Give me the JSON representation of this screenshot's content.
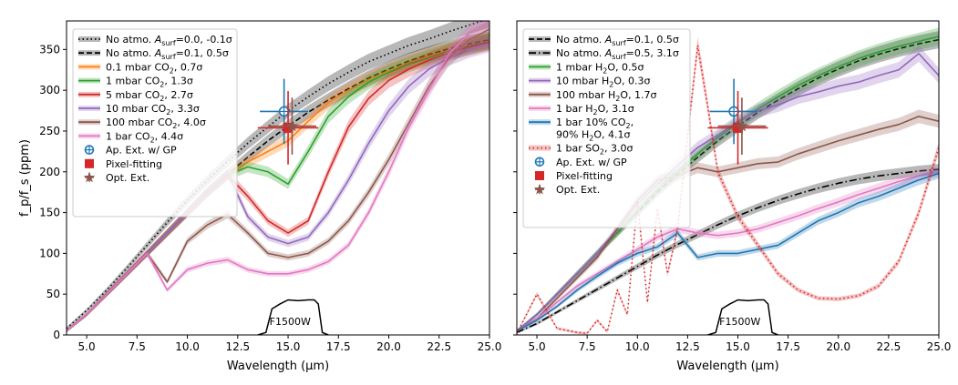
{
  "chart_data": [
    {
      "type": "line",
      "panel": "left",
      "xlabel": "Wavelength (μm)",
      "ylabel": "f_p/f_s (ppm)",
      "xlim": [
        4,
        25
      ],
      "ylim": [
        0,
        385
      ],
      "xticks": [
        5.0,
        7.5,
        10.0,
        12.5,
        15.0,
        17.5,
        20.0,
        22.5,
        25.0
      ],
      "xtick_labels": [
        "5.0",
        "7.5",
        "10.0",
        "12.5",
        "15.0",
        "17.5",
        "20.0",
        "22.5",
        "25.0"
      ],
      "yticks": [
        0,
        50,
        100,
        150,
        200,
        250,
        300,
        350
      ],
      "ytick_labels": [
        "0",
        "50",
        "100",
        "150",
        "200",
        "250",
        "300",
        "350"
      ],
      "legend_position": "top-left",
      "filter_label": "F1500W",
      "series": [
        {
          "name": "No atmo. A_surf=0.0, -0.1σ",
          "label_pre": "No atmo. ",
          "label_sym": "A",
          "label_sub": "surf",
          "label_post": "=0.0, -0.1σ",
          "color": "#000000",
          "dash": "dotted",
          "band": true,
          "x": [
            4,
            5,
            6,
            7,
            8,
            9,
            10,
            11,
            12,
            13,
            14,
            15,
            16,
            17,
            18,
            19,
            20,
            21,
            22,
            23,
            24,
            25
          ],
          "y": [
            8,
            30,
            55,
            82,
            110,
            138,
            165,
            190,
            213,
            235,
            255,
            275,
            292,
            308,
            322,
            335,
            345,
            355,
            363,
            372,
            380,
            388
          ]
        },
        {
          "name": "No atmo. A_surf=0.1, 0.5σ",
          "label_pre": "No atmo. ",
          "label_sym": "A",
          "label_sub": "surf",
          "label_post": "=0.1, 0.5σ",
          "color": "#000000",
          "dash": "dashed",
          "band": true,
          "x": [
            4,
            5,
            6,
            7,
            8,
            9,
            10,
            11,
            12,
            13,
            14,
            15,
            16,
            17,
            18,
            19,
            20,
            21,
            22,
            23,
            24,
            25
          ],
          "y": [
            5,
            25,
            50,
            75,
            100,
            125,
            150,
            175,
            197,
            218,
            238,
            256,
            273,
            288,
            302,
            315,
            326,
            336,
            344,
            351,
            357,
            362
          ]
        },
        {
          "name": "0.1 mbar CO2, 0.7σ",
          "label_pre": "0.1 mbar CO",
          "label_sub": "2",
          "label_post": ", 0.7σ",
          "color": "#ff7f0e",
          "band": true,
          "x": [
            4,
            5,
            6,
            7,
            8,
            9,
            10,
            11,
            12,
            13,
            14,
            15,
            16,
            17,
            18,
            19,
            20,
            21,
            22,
            23,
            24,
            25
          ],
          "y": [
            5,
            25,
            50,
            75,
            100,
            125,
            150,
            175,
            196,
            212,
            225,
            238,
            262,
            285,
            300,
            313,
            324,
            334,
            342,
            349,
            355,
            360
          ]
        },
        {
          "name": "1 mbar CO2, 1.3σ",
          "label_pre": "1 mbar CO",
          "label_sub": "2",
          "label_post": ", 1.3σ",
          "color": "#2ca02c",
          "band": true,
          "x": [
            4,
            5,
            6,
            7,
            8,
            9,
            10,
            11,
            12,
            13,
            14,
            15,
            16,
            17,
            18,
            19,
            20,
            21,
            22,
            23,
            24,
            25
          ],
          "y": [
            5,
            25,
            50,
            75,
            100,
            125,
            150,
            175,
            196,
            206,
            200,
            185,
            225,
            268,
            292,
            310,
            322,
            332,
            340,
            348,
            354,
            360
          ]
        },
        {
          "name": "5 mbar CO2, 2.7σ",
          "label_pre": "5 mbar CO",
          "label_sub": "2",
          "label_post": ", 2.7σ",
          "color": "#d62728",
          "band": true,
          "x": [
            4,
            5,
            6,
            7,
            8,
            9,
            10,
            11,
            12,
            13,
            14,
            15,
            16,
            17,
            18,
            19,
            20,
            21,
            22,
            23,
            24,
            25
          ],
          "y": [
            5,
            25,
            50,
            75,
            100,
            125,
            150,
            175,
            196,
            170,
            140,
            125,
            140,
            200,
            255,
            290,
            312,
            326,
            337,
            346,
            353,
            359
          ]
        },
        {
          "name": "10 mbar CO2, 3.3σ",
          "label_pre": "10 mbar CO",
          "label_sub": "2",
          "label_post": ", 3.3σ",
          "color": "#9467bd",
          "band": true,
          "x": [
            4,
            5,
            6,
            7,
            8,
            9,
            10,
            11,
            12,
            13,
            14,
            15,
            16,
            17,
            18,
            19,
            20,
            21,
            22,
            23,
            24,
            25
          ],
          "y": [
            5,
            25,
            50,
            75,
            100,
            125,
            150,
            175,
            198,
            145,
            120,
            112,
            120,
            150,
            190,
            235,
            275,
            305,
            326,
            340,
            350,
            357
          ]
        },
        {
          "name": "100 mbar CO2, 4.0σ",
          "label_pre": "100 mbar CO",
          "label_sub": "2",
          "label_post": ", 4.0σ",
          "color": "#8c564b",
          "band": true,
          "x": [
            4,
            5,
            6,
            7,
            8,
            9,
            10,
            11,
            12,
            13,
            14,
            15,
            16,
            17,
            18,
            19,
            20,
            21,
            22,
            23,
            24,
            25
          ],
          "y": [
            5,
            25,
            50,
            75,
            100,
            65,
            115,
            135,
            148,
            125,
            100,
            95,
            100,
            115,
            140,
            175,
            215,
            260,
            305,
            340,
            362,
            375
          ]
        },
        {
          "name": "1 bar CO2, 4.4σ",
          "label_pre": "1 bar CO",
          "label_sub": "2",
          "label_post": ", 4.4σ",
          "color": "#e377c2",
          "band": true,
          "x": [
            4,
            5,
            6,
            7,
            8,
            9,
            10,
            11,
            12,
            13,
            14,
            15,
            16,
            17,
            18,
            19,
            20,
            21,
            22,
            23,
            24,
            25
          ],
          "y": [
            5,
            25,
            50,
            75,
            100,
            55,
            80,
            88,
            92,
            80,
            75,
            75,
            80,
            90,
            110,
            150,
            200,
            255,
            300,
            345,
            370,
            385
          ]
        }
      ],
      "points": [
        {
          "name": "Ap. Ext. w/ GP",
          "x": 14.8,
          "y": 274,
          "xerr": 1.2,
          "yerr": 40,
          "color": "#1f77b4",
          "marker": "circle-plus"
        },
        {
          "name": "Pixel-fitting",
          "x": 15.0,
          "y": 254,
          "xerr": 1.5,
          "yerr": 45,
          "color": "#d62728",
          "marker": "square"
        },
        {
          "name": "Opt. Ext.",
          "x": 15.2,
          "y": 256,
          "xerr": 1.2,
          "yerr": 35,
          "color": "#8c564b",
          "marker": "star"
        }
      ]
    },
    {
      "type": "line",
      "panel": "right",
      "xlabel": "Wavelength (μm)",
      "ylabel": "",
      "xlim": [
        4,
        25
      ],
      "ylim": [
        0,
        385
      ],
      "xticks": [
        5.0,
        7.5,
        10.0,
        12.5,
        15.0,
        17.5,
        20.0,
        22.5,
        25.0
      ],
      "xtick_labels": [
        "5.0",
        "7.5",
        "10.0",
        "12.5",
        "15.0",
        "17.5",
        "20.0",
        "22.5",
        "25.0"
      ],
      "yticks": [
        0,
        50,
        100,
        150,
        200,
        250,
        300,
        350
      ],
      "legend_position": "top-left",
      "filter_label": "F1500W",
      "series": [
        {
          "name": "No atmo. A_surf=0.1, 0.5σ",
          "label_pre": "No atmo. ",
          "label_sym": "A",
          "label_sub": "surf",
          "label_post": "=0.1, 0.5σ",
          "color": "#000000",
          "dash": "dashed",
          "band": true,
          "x": [
            4,
            5,
            6,
            7,
            8,
            9,
            10,
            11,
            12,
            13,
            14,
            15,
            16,
            17,
            18,
            19,
            20,
            21,
            22,
            23,
            24,
            25
          ],
          "y": [
            5,
            25,
            50,
            75,
            100,
            125,
            150,
            175,
            197,
            218,
            238,
            256,
            273,
            288,
            302,
            315,
            326,
            336,
            344,
            351,
            357,
            362
          ]
        },
        {
          "name": "No atmo. A_surf=0.5, 3.1σ",
          "label_pre": "No atmo. ",
          "label_sym": "A",
          "label_sub": "surf",
          "label_post": "=0.5, 3.1σ",
          "color": "#000000",
          "dash": "dashdot",
          "band": true,
          "x": [
            4,
            5,
            6,
            7,
            8,
            9,
            10,
            11,
            12,
            13,
            14,
            15,
            16,
            17,
            18,
            19,
            20,
            21,
            22,
            23,
            24,
            25
          ],
          "y": [
            3,
            14,
            28,
            42,
            56,
            70,
            84,
            98,
            111,
            123,
            135,
            146,
            156,
            165,
            173,
            180,
            186,
            191,
            195,
            198,
            201,
            203
          ]
        },
        {
          "name": "1 mbar H2O, 0.5σ",
          "label_pre": "1 mbar H",
          "label_sub": "2",
          "label_post": "O, 0.5σ",
          "color": "#2ca02c",
          "band": true,
          "x": [
            4,
            5,
            6,
            7,
            8,
            9,
            10,
            11,
            12,
            13,
            14,
            15,
            16,
            17,
            18,
            19,
            20,
            21,
            22,
            23,
            24,
            25
          ],
          "y": [
            5,
            25,
            50,
            75,
            100,
            125,
            152,
            178,
            200,
            222,
            242,
            260,
            277,
            292,
            306,
            318,
            329,
            339,
            347,
            354,
            360,
            366
          ]
        },
        {
          "name": "10 mbar H2O, 0.3σ",
          "label_pre": "10 mbar H",
          "label_sub": "2",
          "label_post": "O, 0.3σ",
          "color": "#9467bd",
          "band": true,
          "x": [
            4,
            5,
            6,
            7,
            8,
            9,
            10,
            11,
            12,
            13,
            14,
            15,
            16,
            17,
            18,
            19,
            20,
            21,
            22,
            23,
            24,
            25
          ],
          "y": [
            5,
            25,
            50,
            75,
            100,
            130,
            160,
            185,
            208,
            230,
            245,
            262,
            275,
            282,
            292,
            298,
            305,
            310,
            318,
            325,
            345,
            318
          ]
        },
        {
          "name": "100 mbar H2O, 1.7σ",
          "label_pre": "100 mbar H",
          "label_sub": "2",
          "label_post": "O, 1.7σ",
          "color": "#8c564b",
          "band": true,
          "x": [
            4,
            5,
            6,
            7,
            8,
            9,
            10,
            11,
            12,
            13,
            14,
            15,
            16,
            17,
            18,
            19,
            20,
            21,
            22,
            23,
            24,
            25
          ],
          "y": [
            5,
            20,
            45,
            70,
            95,
            130,
            165,
            190,
            195,
            205,
            200,
            205,
            210,
            212,
            222,
            230,
            238,
            245,
            252,
            258,
            268,
            262
          ]
        },
        {
          "name": "1 bar H2O, 3.1σ",
          "label_pre": "1 bar H",
          "label_sub": "2",
          "label_post": "O, 3.1σ",
          "color": "#e377c2",
          "band": true,
          "x": [
            4,
            5,
            6,
            7,
            8,
            9,
            10,
            11,
            12,
            13,
            14,
            15,
            16,
            17,
            18,
            19,
            20,
            21,
            22,
            23,
            24,
            25
          ],
          "y": [
            5,
            20,
            40,
            60,
            75,
            90,
            105,
            120,
            130,
            125,
            122,
            125,
            130,
            138,
            146,
            155,
            163,
            172,
            180,
            188,
            195,
            200
          ]
        },
        {
          "name": "1 bar 10% CO2, 90% H2O, 4.1σ",
          "label_line1_pre": "1 bar 10% CO",
          "label_line1_sub": "2",
          "label_line1_post": ",",
          "label_line2_pre": "90% H",
          "label_line2_sub": "2",
          "label_line2_post": "O, 4.1σ",
          "color": "#1f77b4",
          "band": true,
          "x": [
            4,
            5,
            6,
            7,
            8,
            9,
            10,
            11,
            12,
            13,
            14,
            15,
            16,
            17,
            18,
            19,
            20,
            21,
            22,
            23,
            24,
            25
          ],
          "y": [
            5,
            18,
            35,
            55,
            72,
            88,
            100,
            108,
            125,
            95,
            100,
            100,
            105,
            110,
            125,
            140,
            150,
            162,
            170,
            180,
            190,
            198
          ]
        },
        {
          "name": "1 bar SO2, 3.0σ",
          "label_pre": "1 bar SO",
          "label_sub": "2",
          "label_post": ", 3.0σ",
          "color": "#d62728",
          "dash": "dotted",
          "band": true,
          "x": [
            4,
            5,
            6,
            7,
            7.5,
            8,
            8.5,
            9,
            9.5,
            10,
            10.5,
            11,
            11.5,
            12,
            12.5,
            13,
            13.5,
            14,
            15,
            16,
            17,
            18,
            19,
            20,
            21,
            22,
            23,
            24,
            25
          ],
          "y": [
            2,
            50,
            8,
            3,
            2,
            18,
            4,
            55,
            25,
            165,
            40,
            155,
            75,
            130,
            245,
            355,
            280,
            200,
            145,
            110,
            75,
            55,
            45,
            44,
            48,
            60,
            90,
            150,
            230
          ]
        }
      ],
      "points": [
        {
          "name": "Ap. Ext. w/ GP",
          "x": 14.8,
          "y": 274,
          "xerr": 1.2,
          "yerr": 40,
          "color": "#1f77b4",
          "marker": "circle-plus"
        },
        {
          "name": "Pixel-fitting",
          "x": 15.0,
          "y": 254,
          "xerr": 1.5,
          "yerr": 45,
          "color": "#d62728",
          "marker": "square"
        },
        {
          "name": "Opt. Ext.",
          "x": 15.2,
          "y": 256,
          "xerr": 1.2,
          "yerr": 35,
          "color": "#8c564b",
          "marker": "star"
        }
      ]
    }
  ]
}
